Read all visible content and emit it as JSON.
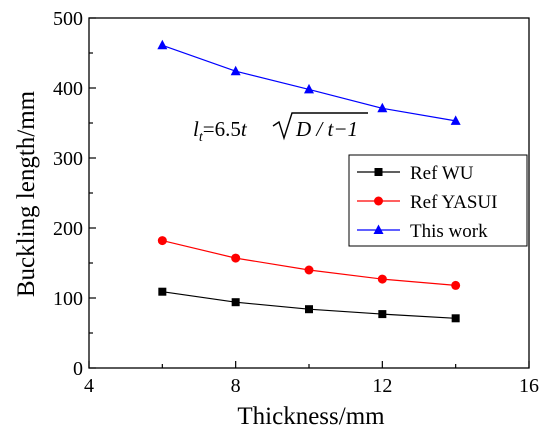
{
  "chart_data": {
    "type": "line",
    "xlabel": "Thickness/mm",
    "ylabel": "Buckling length/mm",
    "xlim": [
      4,
      16
    ],
    "ylim": [
      0,
      500
    ],
    "xticks": [
      4,
      8,
      12,
      16
    ],
    "yticks": [
      0,
      100,
      200,
      300,
      400,
      500
    ],
    "grid": false,
    "legend_position": "center-right",
    "x": [
      6,
      8,
      10,
      12,
      14
    ],
    "series": [
      {
        "name": "Ref WU",
        "values": [
          109,
          94,
          84,
          77,
          71
        ],
        "color": "#000000",
        "marker": "square"
      },
      {
        "name": "Ref YASUI",
        "values": [
          182,
          157,
          140,
          127,
          118
        ],
        "color": "#ff0000",
        "marker": "circle"
      },
      {
        "name": "This work",
        "values": [
          461,
          424,
          398,
          371,
          353
        ],
        "color": "#0000ff",
        "marker": "triangle"
      }
    ],
    "annotation": {
      "symbol": "l",
      "subscript": "t",
      "coefficient": "=6.5",
      "variable": "t",
      "radicand": "D / t−1"
    }
  }
}
